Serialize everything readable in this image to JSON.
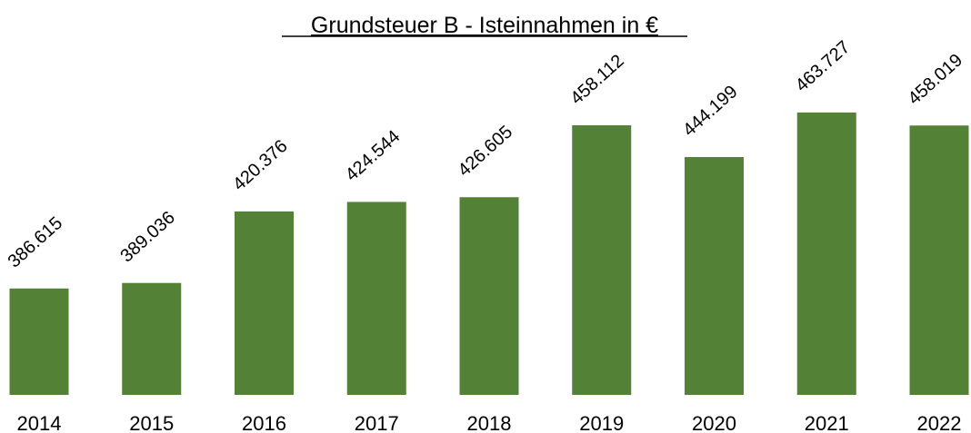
{
  "chart_data": {
    "type": "bar",
    "title": "Grundsteuer B - Isteinnahmen in €",
    "categories": [
      "2014",
      "2015",
      "2016",
      "2017",
      "2018",
      "2019",
      "2020",
      "2021",
      "2022"
    ],
    "values": [
      386615,
      389036,
      420376,
      424544,
      426605,
      458112,
      444199,
      463727,
      458019
    ],
    "value_labels": [
      "386.615",
      "389.036",
      "420.376",
      "424.544",
      "426.605",
      "458.112",
      "444.199",
      "463.727",
      "458.019"
    ],
    "color": "#538135",
    "ylim": [
      340000,
      480000
    ]
  }
}
